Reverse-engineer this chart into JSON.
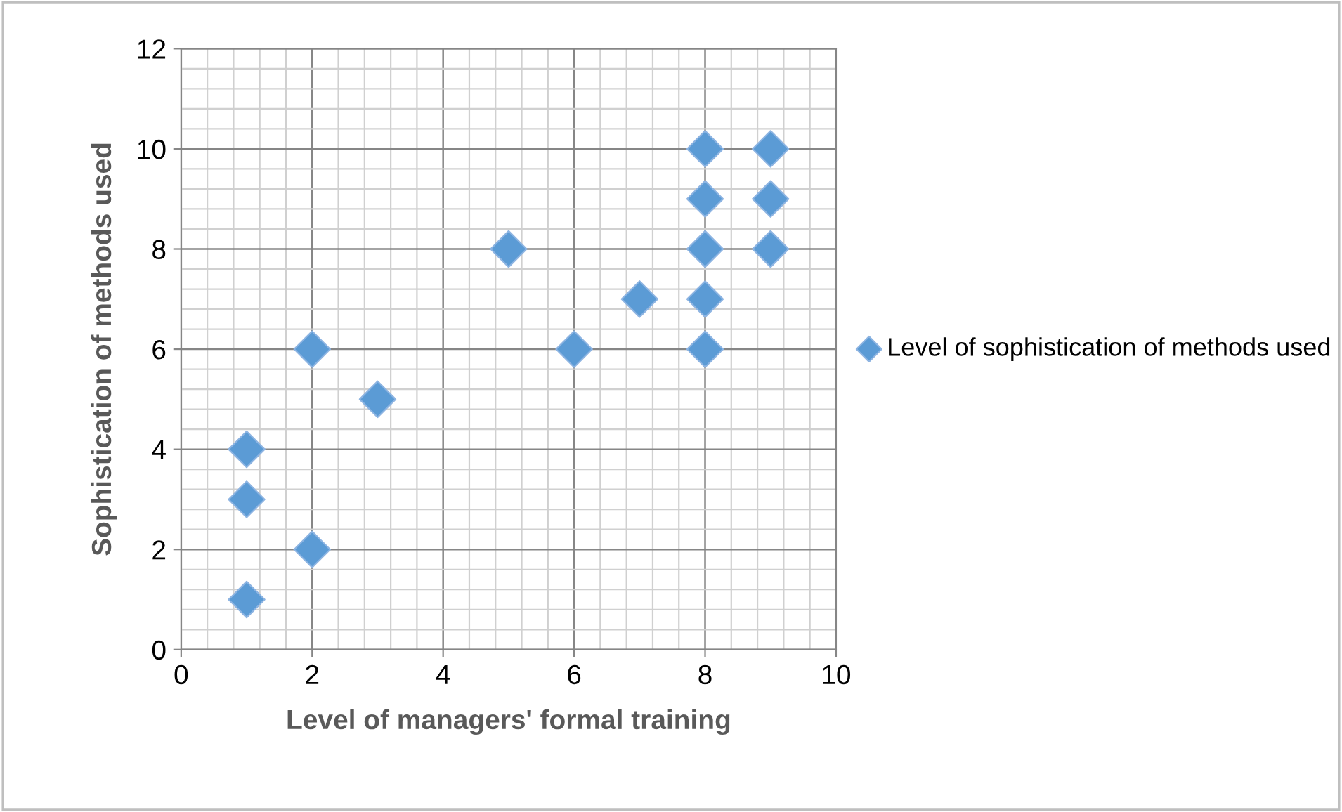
{
  "chart_data": {
    "type": "scatter",
    "xlabel": "Level of managers' formal training",
    "ylabel": "Sophistication of methods used",
    "x": [
      1,
      1,
      1,
      2,
      2,
      3,
      5,
      6,
      7,
      8,
      8,
      8,
      8,
      8,
      9,
      9,
      9
    ],
    "series": [
      {
        "name": "Level of sophistication of methods used",
        "color": "#5b9bd5",
        "values": [
          4,
          3,
          1,
          6,
          2,
          5,
          8,
          6,
          7,
          10,
          9,
          8,
          7,
          6,
          10,
          9,
          8
        ]
      }
    ],
    "xlim": [
      0,
      10
    ],
    "xticks": [
      0,
      2,
      4,
      6,
      8,
      10
    ],
    "ylim": [
      0,
      12
    ],
    "yticks": [
      0,
      2,
      4,
      6,
      8,
      10,
      12
    ],
    "grid": true,
    "legend": "right",
    "marker": "diamond"
  }
}
